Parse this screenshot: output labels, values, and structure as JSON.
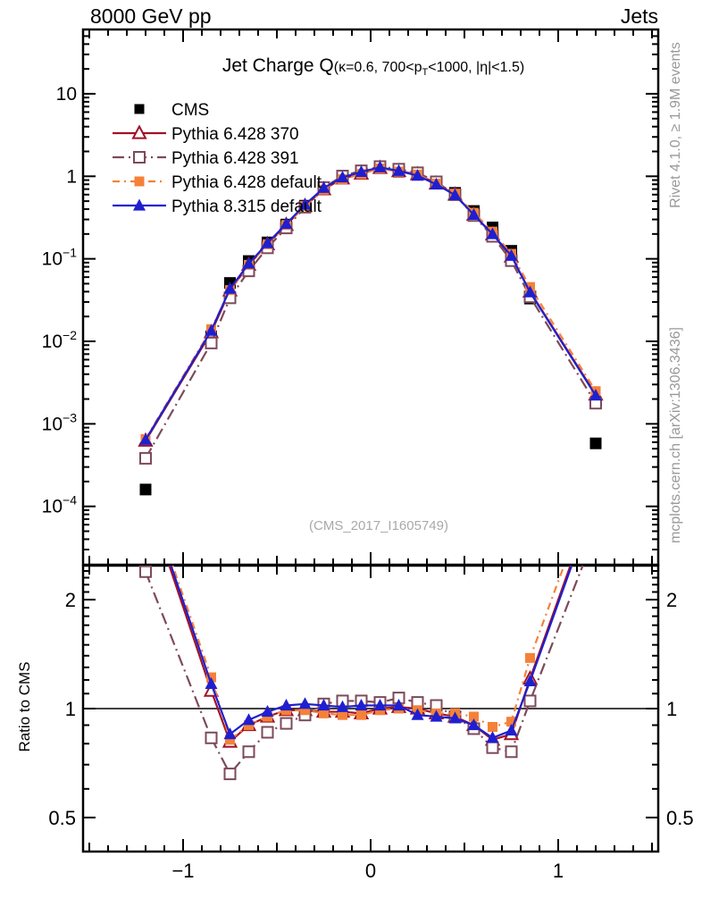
{
  "header": {
    "beam": "8000 GeV pp",
    "right": "Jets"
  },
  "title": {
    "main": "Jet Charge Q",
    "cond_pre": "(κ=0.6, 700<p",
    "cond_sub": "T",
    "cond_post": "<1000, |η|<1.5)"
  },
  "watermark": "(CMS_2017_I1605749)",
  "side_notes": {
    "top": "Rivet 4.1.0, ≥ 1.9M events",
    "bottom": "mcplots.cern.ch [arXiv:1306.3436]"
  },
  "axes": {
    "x_ticks": [
      -1,
      0,
      1
    ],
    "x_minor_step": 0.1,
    "xlim": [
      -1.53,
      1.53
    ],
    "main_y_scale": "log",
    "main_y_tick_exponents": [
      1,
      0,
      -1,
      -2,
      -3,
      -4
    ],
    "main_ylim": [
      2e-05,
      60
    ],
    "ratio_y_scale": "log",
    "ratio_y_ticks": [
      2,
      1,
      0.5
    ],
    "ratio_y_minor_ticks": [
      0.6,
      0.7,
      0.8,
      0.9,
      1.1,
      1.2,
      1.3,
      1.4,
      1.5,
      1.6,
      1.7,
      1.8,
      1.9,
      2.1,
      2.2,
      2.3,
      2.4
    ],
    "ratio_ylim": [
      0.4,
      2.5
    ],
    "ratio_y_label": "Ratio to CMS",
    "ratio_reference_line": 1
  },
  "chart_data": {
    "type": "line",
    "panels": [
      "jet charge distribution (log y)",
      "ratio to CMS (log y)"
    ],
    "x": [
      -1.2,
      -0.85,
      -0.75,
      -0.65,
      -0.55,
      -0.45,
      -0.35,
      -0.25,
      -0.15,
      -0.05,
      0.05,
      0.15,
      0.25,
      0.35,
      0.45,
      0.55,
      0.65,
      0.75,
      0.85,
      1.2
    ],
    "cms": {
      "name": "CMS",
      "color": "#000000",
      "marker": "square-filled",
      "values": [
        0.00016,
        0.0115,
        0.051,
        0.094,
        0.158,
        0.26,
        0.44,
        0.71,
        0.96,
        1.11,
        1.26,
        1.14,
        1.06,
        0.84,
        0.63,
        0.38,
        0.24,
        0.125,
        0.033,
        0.00058
      ]
    },
    "series_values_definition": "main panel value[i] = cms.values[i] * ratio[i]",
    "series": [
      {
        "name": "Pythia 6.428 370",
        "color": "#a11227",
        "marker": "triangle-open",
        "line": "solid",
        "ratio": [
          3.9,
          1.12,
          0.81,
          0.9,
          0.95,
          0.99,
          0.99,
          0.98,
          0.98,
          0.97,
          1.0,
          1.01,
          1.0,
          0.97,
          0.95,
          0.9,
          0.82,
          0.85,
          1.21,
          3.9
        ]
      },
      {
        "name": "Pythia 6.428 391",
        "color": "#7d4a5a",
        "marker": "square-open",
        "line": "dashdot-long",
        "ratio": [
          2.39,
          0.83,
          0.66,
          0.76,
          0.86,
          0.91,
          0.96,
          1.03,
          1.05,
          1.05,
          1.04,
          1.07,
          1.04,
          1.02,
          0.95,
          0.88,
          0.78,
          0.76,
          1.05,
          3.07
        ]
      },
      {
        "name": "Pythia 6.428 default",
        "color": "#f58138",
        "marker": "square-filled",
        "line": "dashdot-short",
        "ratio": [
          4.1,
          1.22,
          0.82,
          0.9,
          0.95,
          0.99,
          0.99,
          0.97,
          0.96,
          0.96,
          0.99,
          1.0,
          0.99,
          0.97,
          0.97,
          0.95,
          0.89,
          0.92,
          1.38,
          4.3
        ]
      },
      {
        "name": "Pythia 8.315 default",
        "color": "#1f1fd0",
        "marker": "triangle-filled",
        "line": "solid",
        "ratio": [
          4.0,
          1.17,
          0.85,
          0.93,
          0.98,
          1.02,
          1.03,
          1.02,
          1.01,
          1.02,
          1.02,
          1.02,
          0.96,
          0.95,
          0.94,
          0.9,
          0.83,
          0.87,
          1.19,
          3.8
        ]
      }
    ]
  }
}
